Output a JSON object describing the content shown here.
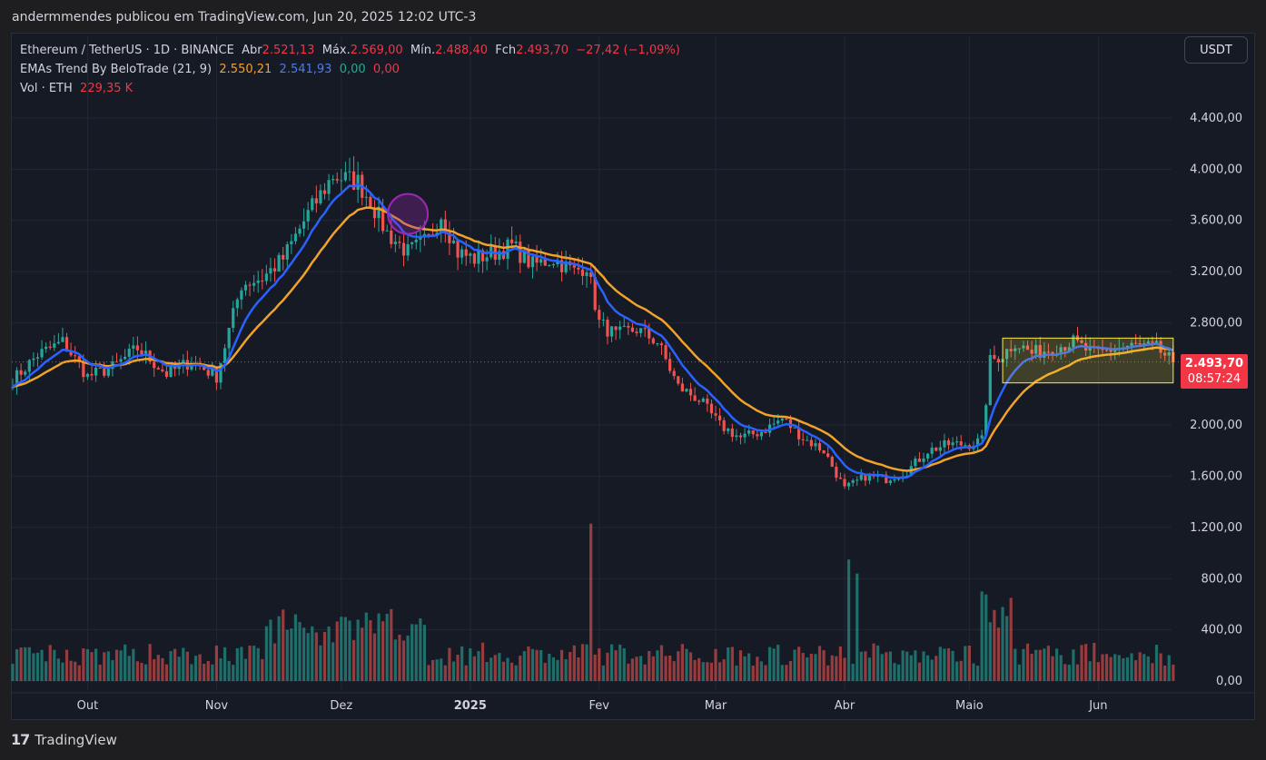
{
  "header": {
    "published_by": "andermmendes publicou em TradingView.com, Jun 20, 2025 12:02 UTC-3"
  },
  "legend": {
    "symbol": "Ethereum / TetherUS · 1D · BINANCE",
    "open_label": "Abr",
    "open": "2.521,13",
    "high_label": "Máx.",
    "high": "2.569,00",
    "low_label": "Mín.",
    "low": "2.488,40",
    "close_label": "Fch",
    "close": "2.493,70",
    "change": "−27,42 (−1,09%)",
    "ema_name": "EMAs Trend By BeloTrade (21, 9)",
    "ema_slow": "2.550,21",
    "ema_fast": "2.541,93",
    "ema_v3": "0,00",
    "ema_v4": "0,00",
    "vol_name": "Vol · ETH",
    "vol_value": "229,35 K"
  },
  "currency_button": "USDT",
  "price_tag": {
    "price": "2.493,70",
    "countdown": "08:57:24"
  },
  "footer": {
    "logo_mark": "17",
    "brand": "TradingView"
  },
  "colors": {
    "up": "#26a69a",
    "down": "#ef5350",
    "ema_fast": "#2962ff",
    "ema_slow": "#f0a22a",
    "highlight": "#ffeb3b",
    "circle": "#9c27b0"
  },
  "chart_data": {
    "type": "candlestick",
    "title": "Ethereum / TetherUS · 1D · BINANCE",
    "y_ticks": [
      "4.400,00",
      "4.000,00",
      "3.600,00",
      "3.200,00",
      "2.800,00",
      "2.000,00",
      "1.600,00",
      "1.200,00",
      "800,00",
      "400,00",
      "0,00"
    ],
    "y_tick_values": [
      4400,
      4000,
      3600,
      3200,
      2800,
      2000,
      1600,
      1200,
      800,
      400,
      0
    ],
    "ylim": [
      0,
      4800
    ],
    "x_labels": [
      "Out",
      "Nov",
      "Dez",
      "2025",
      "Fev",
      "Mar",
      "Abr",
      "Maio",
      "Jun"
    ],
    "x_label_days": [
      18,
      49,
      79,
      110,
      141,
      169,
      200,
      230,
      261
    ],
    "anchors_day": [
      0,
      6,
      12,
      18,
      24,
      30,
      37,
      43,
      49,
      55,
      60,
      65,
      71,
      77,
      83,
      86,
      90,
      95,
      100,
      103,
      107,
      111,
      116,
      120,
      125,
      130,
      135,
      138,
      141,
      145,
      150,
      155,
      160,
      165,
      170,
      175,
      180,
      185,
      190,
      195,
      200,
      205,
      210,
      215,
      220,
      225,
      230,
      233,
      235,
      238,
      241,
      245,
      250,
      255,
      260,
      265,
      270,
      275,
      279
    ],
    "anchors_close": [
      2350,
      2550,
      2650,
      2380,
      2450,
      2600,
      2400,
      2500,
      2380,
      3100,
      3150,
      3300,
      3650,
      3950,
      3900,
      3750,
      3500,
      3350,
      3450,
      3650,
      3350,
      3300,
      3350,
      3400,
      3250,
      3300,
      3200,
      3250,
      2800,
      2700,
      2750,
      2650,
      2300,
      2200,
      2000,
      1900,
      1950,
      2050,
      1900,
      1800,
      1500,
      1600,
      1580,
      1640,
      1800,
      1850,
      1850,
      1880,
      2500,
      2550,
      2650,
      2560,
      2600,
      2650,
      2550,
      2600,
      2620,
      2600,
      2490
    ],
    "volume_profile": "elevated on Dec, late Jan/early Feb spike to ~1200k, Apr spike ~950k, May breakout spike ~700k",
    "ema_fast_last": 2541.93,
    "ema_slow_last": 2550.21,
    "last_close": 2493.7,
    "annotations": [
      {
        "type": "circle",
        "day": 95,
        "price": 3650
      },
      {
        "type": "rectangle",
        "day_start": 238,
        "day_end": 279,
        "price_low": 2330,
        "price_high": 2680
      }
    ]
  }
}
